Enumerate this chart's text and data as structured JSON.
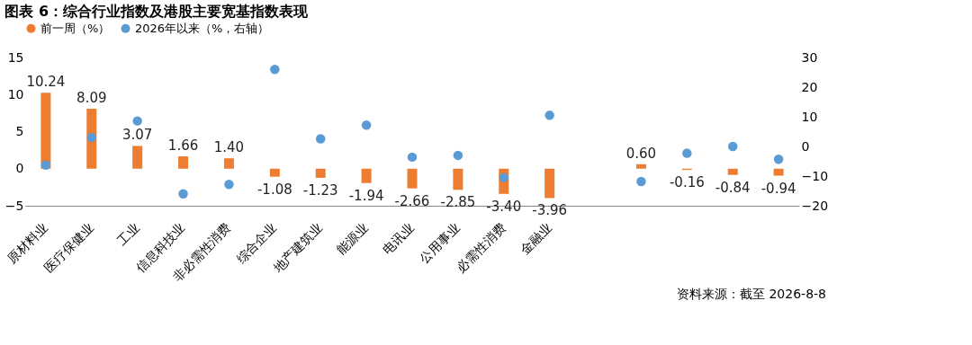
{
  "chart_data": {
    "type": "bar",
    "title": "图表 6：综合行业指数及港股主要宽基指数表现",
    "categories": [
      "原材料业",
      "医疗保健业",
      "工业",
      "信息科技业",
      "非必需性消费",
      "综合企业",
      "地产建筑业",
      "能源业",
      "电讯业",
      "公用事业",
      "必需性消费",
      "金融业",
      null,
      null,
      null,
      null,
      null
    ],
    "series": [
      {
        "name": "前一周（%）",
        "color": "#ed7d31",
        "values": [
          10.24,
          8.09,
          3.07,
          1.66,
          1.4,
          -1.08,
          -1.23,
          -1.94,
          -2.66,
          -2.85,
          -3.4,
          -3.96,
          null,
          0.6,
          -0.16,
          -0.84,
          -0.94
        ],
        "value_labels": [
          "10.24",
          "8.09",
          "3.07",
          "1.66",
          "1.40",
          "-1.08",
          "-1.23",
          "-1.94",
          "-2.66",
          "-2.85",
          "-3.40",
          "-3.96",
          null,
          "0.60",
          "-0.16",
          "-0.84",
          "-0.94"
        ]
      },
      {
        "name": "2026年以来（%，右轴）",
        "type": "scatter",
        "axis": "y2",
        "marker": "circle",
        "color": "#5b9bd5",
        "values": [
          -6.3,
          3,
          8.6,
          -16,
          -12.8,
          26,
          2.6,
          7.2,
          -3.6,
          -3,
          -10.5,
          10.5,
          null,
          -11.8,
          -2.3,
          0,
          -4.3
        ]
      }
    ],
    "ylim": [
      -5,
      15
    ],
    "yticks": [
      -5,
      0,
      5,
      10,
      15
    ],
    "y2lim": [
      -20,
      30
    ],
    "y2ticks": [
      -20,
      -10,
      0,
      10,
      20,
      30
    ],
    "grid": false,
    "legend": "top",
    "annotations": [
      "资料来源：截至 2026-8-8"
    ]
  }
}
